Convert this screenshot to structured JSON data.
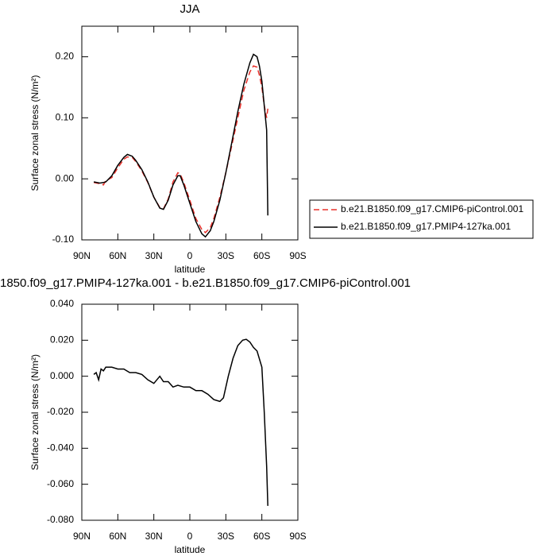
{
  "chart_data": [
    {
      "type": "line",
      "title": "JJA",
      "xlabel": "latitude",
      "ylabel": "Surface zonal stress (N/m²)",
      "xlim": [
        90,
        -90
      ],
      "ylim": [
        -0.1,
        0.25
      ],
      "xticks": [
        {
          "value": 90,
          "label": "90N"
        },
        {
          "value": 60,
          "label": "60N"
        },
        {
          "value": 30,
          "label": "30N"
        },
        0,
        {
          "value": -30,
          "label": "30S"
        },
        {
          "value": -60,
          "label": "60S"
        },
        {
          "value": -90,
          "label": "90S"
        }
      ],
      "yticks": [
        {
          "value": -0.1,
          "label": "-0.10"
        },
        {
          "value": 0,
          "label": "0.00"
        },
        {
          "value": 0.1,
          "label": "0.10"
        },
        {
          "value": 0.2,
          "label": "0.20"
        }
      ],
      "legend": "right",
      "x": [
        80,
        75,
        72,
        70,
        65,
        60,
        55,
        52,
        48,
        45,
        40,
        35,
        30,
        25,
        22,
        18,
        14,
        10,
        8,
        5,
        0,
        -5,
        -10,
        -13,
        -17,
        -20,
        -25,
        -30,
        -35,
        -40,
        -45,
        -50,
        -53,
        -56,
        -58,
        -60,
        -62,
        -64,
        -65
      ],
      "series": [
        {
          "name": "b.e21.B1850.f09_g17.CMIP6-piControl.001",
          "color": "#e8302a",
          "dash": "dashed",
          "values": [
            -0.006,
            -0.008,
            -0.01,
            -0.003,
            0.002,
            0.018,
            0.032,
            0.036,
            0.035,
            0.028,
            0.013,
            -0.006,
            -0.03,
            -0.047,
            -0.049,
            -0.033,
            -0.005,
            0.01,
            0.008,
            -0.006,
            -0.035,
            -0.065,
            -0.083,
            -0.088,
            -0.08,
            -0.065,
            -0.03,
            0.01,
            0.055,
            0.1,
            0.145,
            0.175,
            0.185,
            0.183,
            0.17,
            0.15,
            0.12,
            0.1,
            0.115
          ]
        },
        {
          "name": "b.e21.B1850.f09_g17.PMIP4-127ka.001",
          "color": "#000000",
          "dash": "solid",
          "values": [
            -0.005,
            -0.007,
            -0.006,
            -0.005,
            0.005,
            0.022,
            0.035,
            0.04,
            0.037,
            0.03,
            0.015,
            -0.005,
            -0.03,
            -0.048,
            -0.05,
            -0.035,
            -0.01,
            0.005,
            0.005,
            -0.01,
            -0.04,
            -0.07,
            -0.09,
            -0.095,
            -0.085,
            -0.07,
            -0.035,
            0.01,
            0.06,
            0.11,
            0.155,
            0.19,
            0.204,
            0.2,
            0.185,
            0.16,
            0.12,
            0.08,
            -0.06
          ]
        }
      ]
    },
    {
      "type": "line",
      "title": "1850.f09_g17.PMIP4-127ka.001 - b.e21.B1850.f09_g17.CMIP6-piControl.001",
      "xlabel": "latitude",
      "ylabel": "Surface zonal stress (N/m²)",
      "xlim": [
        90,
        -90
      ],
      "ylim": [
        -0.08,
        0.04
      ],
      "xticks": [
        {
          "value": 90,
          "label": "90N"
        },
        {
          "value": 60,
          "label": "60N"
        },
        {
          "value": 30,
          "label": "30N"
        },
        0,
        {
          "value": -30,
          "label": "30S"
        },
        {
          "value": -60,
          "label": "60S"
        },
        {
          "value": -90,
          "label": "90S"
        }
      ],
      "yticks": [
        {
          "value": -0.08,
          "label": "-0.080"
        },
        {
          "value": -0.06,
          "label": "-0.060"
        },
        {
          "value": -0.04,
          "label": "-0.040"
        },
        {
          "value": -0.02,
          "label": "-0.020"
        },
        {
          "value": 0,
          "label": "0.000"
        },
        {
          "value": 0.02,
          "label": "0.020"
        },
        {
          "value": 0.04,
          "label": "0.040"
        }
      ],
      "x": [
        80,
        78,
        76,
        74,
        72,
        70,
        65,
        60,
        55,
        50,
        45,
        40,
        35,
        30,
        25,
        22,
        18,
        14,
        10,
        5,
        0,
        -5,
        -10,
        -15,
        -20,
        -25,
        -28,
        -32,
        -36,
        -40,
        -44,
        -47,
        -50,
        -53,
        -56,
        -60,
        -62,
        -64,
        -65
      ],
      "series": [
        {
          "color": "#000000",
          "dash": "solid",
          "values": [
            0.001,
            0.002,
            -0.002,
            0.004,
            0.003,
            0.005,
            0.005,
            0.004,
            0.004,
            0.002,
            0.002,
            0.001,
            -0.002,
            -0.004,
            0.0,
            -0.003,
            -0.003,
            -0.006,
            -0.005,
            -0.006,
            -0.006,
            -0.008,
            -0.008,
            -0.01,
            -0.013,
            -0.014,
            -0.012,
            0.0,
            0.01,
            0.017,
            0.02,
            0.0205,
            0.019,
            0.016,
            0.014,
            0.005,
            -0.02,
            -0.05,
            -0.072
          ]
        }
      ]
    }
  ]
}
